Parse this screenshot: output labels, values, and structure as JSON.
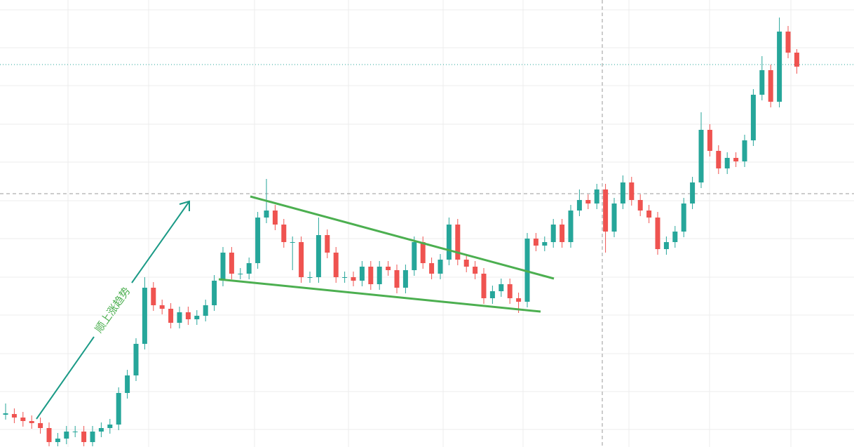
{
  "chart_data": {
    "type": "candlestick",
    "annotation": "顺上涨趋势",
    "ylim": [
      0,
      637
    ],
    "up_color": "#26a69a",
    "down_color": "#ef5350",
    "close": [
      47,
      42,
      37,
      34,
      27,
      7,
      12,
      22,
      22,
      7,
      22,
      27,
      32,
      77,
      102,
      147,
      227,
      202,
      197,
      177,
      192,
      182,
      187,
      202,
      237,
      277,
      247,
      247,
      262,
      327,
      337,
      317,
      292,
      292,
      242,
      242,
      302,
      277,
      242,
      242,
      237,
      257,
      232,
      257,
      252,
      227,
      252,
      292,
      262,
      247,
      267,
      317,
      267,
      257,
      247,
      212,
      222,
      232,
      212,
      207,
      297,
      287,
      292,
      317,
      292,
      337,
      352,
      347,
      367,
      307,
      347,
      377,
      352,
      337,
      327,
      282,
      292,
      307,
      347,
      377,
      452,
      422,
      397,
      412,
      407,
      437,
      502,
      537,
      492,
      592,
      562,
      542
    ],
    "high": [
      62,
      55,
      50,
      45,
      42,
      35,
      20,
      30,
      30,
      30,
      30,
      35,
      40,
      85,
      110,
      155,
      242,
      235,
      210,
      205,
      200,
      200,
      195,
      210,
      245,
      285,
      285,
      255,
      270,
      335,
      382,
      345,
      325,
      300,
      300,
      250,
      327,
      310,
      285,
      250,
      250,
      265,
      265,
      265,
      265,
      260,
      260,
      300,
      300,
      270,
      275,
      327,
      325,
      275,
      265,
      255,
      230,
      240,
      240,
      220,
      305,
      305,
      300,
      325,
      325,
      345,
      367,
      360,
      375,
      375,
      355,
      387,
      385,
      360,
      345,
      335,
      300,
      315,
      355,
      385,
      477,
      460,
      430,
      420,
      420,
      445,
      510,
      557,
      545,
      612,
      600,
      567
    ],
    "low": [
      39,
      34,
      29,
      26,
      19,
      1,
      1,
      4,
      14,
      1,
      1,
      14,
      19,
      24,
      69,
      94,
      139,
      194,
      189,
      169,
      169,
      174,
      174,
      179,
      194,
      229,
      239,
      239,
      239,
      254,
      319,
      309,
      284,
      252,
      234,
      234,
      234,
      269,
      234,
      234,
      229,
      229,
      224,
      224,
      244,
      219,
      219,
      244,
      254,
      239,
      239,
      259,
      259,
      249,
      239,
      204,
      204,
      214,
      204,
      191,
      199,
      279,
      279,
      284,
      284,
      284,
      329,
      339,
      339,
      277,
      299,
      339,
      344,
      329,
      319,
      274,
      274,
      284,
      299,
      339,
      369,
      414,
      389,
      389,
      399,
      399,
      429,
      494,
      484,
      484,
      554,
      532
    ]
  }
}
